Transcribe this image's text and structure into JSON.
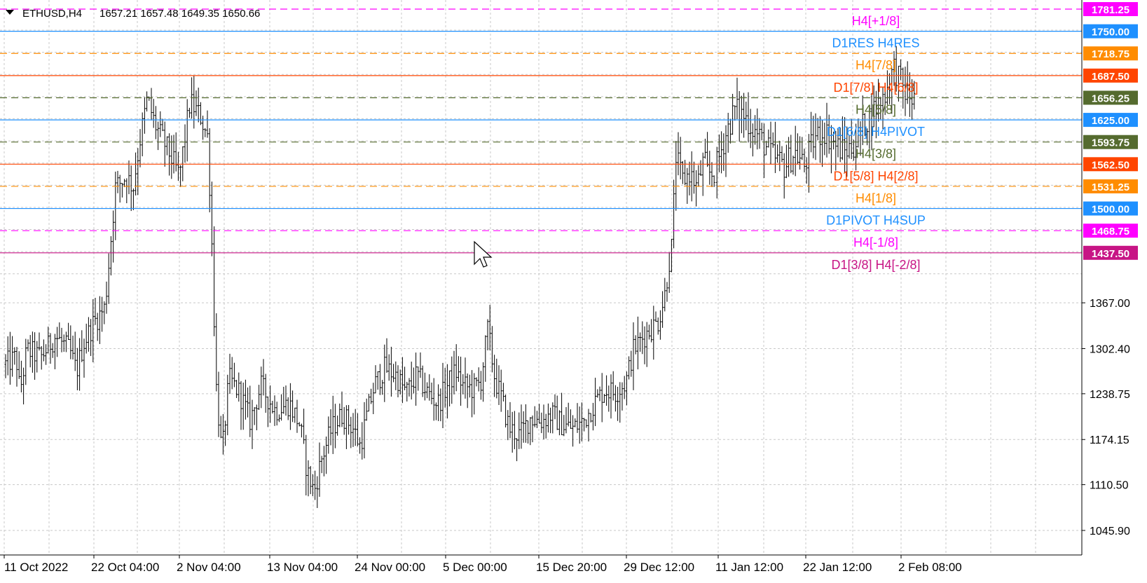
{
  "header": {
    "symbol": "ETHUSD,H4",
    "ohlc": "1657.21 1657.48 1649.35 1650.66"
  },
  "chart_data": {
    "type": "bar",
    "title": "ETHUSD,H4",
    "ylim": [
      1020,
      1790
    ],
    "grid": true,
    "y_ticks": [
      "1045.90",
      "1110.50",
      "1174.15",
      "1238.75",
      "1302.40",
      "1367.00"
    ],
    "y_tick_values": [
      1045.9,
      1110.5,
      1174.15,
      1238.75,
      1302.4,
      1367.0
    ],
    "x_ticks": [
      "11 Oct 2022",
      "22 Oct 04:00",
      "2 Nov 04:00",
      "13 Nov 04:00",
      "24 Nov 00:00",
      "5 Dec 00:00",
      "15 Dec 20:00",
      "29 Dec 12:00",
      "11 Jan 12:00",
      "22 Jan 12:00",
      "2 Feb 08:00"
    ],
    "levels": [
      {
        "value": 1781.25,
        "value_label": "1781.25",
        "label": "H4[+1/8]",
        "color": "#ff00ff",
        "style": "dashed"
      },
      {
        "value": 1750.0,
        "value_label": "1750.00",
        "label": "D1RES H4RES",
        "color": "#1e90ff",
        "style": "solid"
      },
      {
        "value": 1718.75,
        "value_label": "1718.75",
        "label": "H4[7/8]",
        "color": "#ff8c00",
        "style": "dashed"
      },
      {
        "value": 1687.5,
        "value_label": "1687.50",
        "label": "D1[7/8] H4[6/8]",
        "color": "#ff4500",
        "style": "solid"
      },
      {
        "value": 1656.25,
        "value_label": "1656.25",
        "label": "H4[5/8]",
        "color": "#556b2f",
        "style": "dashed"
      },
      {
        "value": 1625.0,
        "value_label": "1625.00",
        "label": "D1[6/8] H4PIVOT",
        "color": "#1e90ff",
        "style": "solid"
      },
      {
        "value": 1593.75,
        "value_label": "1593.75",
        "label": "H4[3/8]",
        "color": "#556b2f",
        "style": "dashed"
      },
      {
        "value": 1562.5,
        "value_label": "1562.50",
        "label": "D1[5/8] H4[2/8]",
        "color": "#ff4500",
        "style": "solid"
      },
      {
        "value": 1531.25,
        "value_label": "1531.25",
        "label": "H4[1/8]",
        "color": "#ff8c00",
        "style": "dashed"
      },
      {
        "value": 1500.0,
        "value_label": "1500.00",
        "label": "D1PIVOT H4SUP",
        "color": "#1e90ff",
        "style": "solid"
      },
      {
        "value": 1468.75,
        "value_label": "1468.75",
        "label": "H4[-1/8]",
        "color": "#ff00ff",
        "style": "dashed"
      },
      {
        "value": 1437.5,
        "value_label": "1437.50",
        "label": "D1[3/8] H4[-2/8]",
        "color": "#c71585",
        "style": "solid"
      }
    ],
    "price_anchors": [
      [
        0,
        1280
      ],
      [
        0.015,
        1290
      ],
      [
        0.02,
        1240
      ],
      [
        0.03,
        1300
      ],
      [
        0.05,
        1290
      ],
      [
        0.07,
        1320
      ],
      [
        0.09,
        1300
      ],
      [
        0.1,
        1270
      ],
      [
        0.11,
        1310
      ],
      [
        0.125,
        1340
      ],
      [
        0.14,
        1360
      ],
      [
        0.155,
        1530
      ],
      [
        0.17,
        1545
      ],
      [
        0.18,
        1530
      ],
      [
        0.19,
        1600
      ],
      [
        0.2,
        1655
      ],
      [
        0.21,
        1620
      ],
      [
        0.23,
        1580
      ],
      [
        0.245,
        1545
      ],
      [
        0.26,
        1650
      ],
      [
        0.275,
        1630
      ],
      [
        0.285,
        1600
      ],
      [
        0.29,
        1480
      ],
      [
        0.297,
        1250
      ],
      [
        0.305,
        1150
      ],
      [
        0.315,
        1260
      ],
      [
        0.33,
        1240
      ],
      [
        0.345,
        1200
      ],
      [
        0.36,
        1250
      ],
      [
        0.38,
        1215
      ],
      [
        0.4,
        1225
      ],
      [
        0.415,
        1195
      ],
      [
        0.425,
        1130
      ],
      [
        0.435,
        1100
      ],
      [
        0.445,
        1145
      ],
      [
        0.46,
        1190
      ],
      [
        0.475,
        1210
      ],
      [
        0.49,
        1190
      ],
      [
        0.5,
        1165
      ],
      [
        0.51,
        1210
      ],
      [
        0.52,
        1250
      ],
      [
        0.535,
        1275
      ],
      [
        0.55,
        1265
      ],
      [
        0.565,
        1240
      ],
      [
        0.58,
        1265
      ],
      [
        0.595,
        1240
      ],
      [
        0.61,
        1225
      ],
      [
        0.625,
        1255
      ],
      [
        0.635,
        1270
      ],
      [
        0.645,
        1250
      ],
      [
        0.66,
        1245
      ],
      [
        0.67,
        1255
      ],
      [
        0.68,
        1330
      ],
      [
        0.69,
        1260
      ],
      [
        0.7,
        1230
      ],
      [
        0.71,
        1190
      ],
      [
        0.725,
        1180
      ],
      [
        0.74,
        1205
      ],
      [
        0.755,
        1200
      ],
      [
        0.77,
        1210
      ],
      [
        0.785,
        1195
      ],
      [
        0.8,
        1190
      ],
      [
        0.815,
        1200
      ],
      [
        0.83,
        1225
      ],
      [
        0.845,
        1245
      ],
      [
        0.86,
        1240
      ],
      [
        0.875,
        1255
      ],
      [
        0.885,
        1300
      ],
      [
        0.9,
        1320
      ],
      [
        0.91,
        1330
      ],
      [
        0.92,
        1340
      ],
      [
        0.93,
        1380
      ],
      [
        0.935,
        1420
      ],
      [
        0.94,
        1450
      ],
      [
        0.945,
        1575
      ],
      [
        0.955,
        1540
      ],
      [
        0.965,
        1550
      ],
      [
        0.975,
        1530
      ],
      [
        0.985,
        1570
      ],
      [
        0.99,
        1550
      ]
    ],
    "price_anchors_part2": [
      [
        0.0,
        1550
      ],
      [
        0.05,
        1600
      ],
      [
        0.1,
        1640
      ],
      [
        0.15,
        1630
      ],
      [
        0.2,
        1610
      ],
      [
        0.25,
        1590
      ],
      [
        0.3,
        1570
      ],
      [
        0.35,
        1560
      ],
      [
        0.4,
        1580
      ],
      [
        0.45,
        1560
      ],
      [
        0.5,
        1600
      ],
      [
        0.55,
        1610
      ],
      [
        0.6,
        1590
      ],
      [
        0.65,
        1580
      ],
      [
        0.7,
        1590
      ],
      [
        0.75,
        1620
      ],
      [
        0.8,
        1640
      ],
      [
        0.85,
        1660
      ],
      [
        0.9,
        1700
      ],
      [
        0.95,
        1665
      ],
      [
        1.0,
        1652
      ]
    ]
  },
  "colors": {
    "background": "#ffffff",
    "grid": "#c8c8c8",
    "bars": "#000000",
    "axis_text": "#000000"
  }
}
